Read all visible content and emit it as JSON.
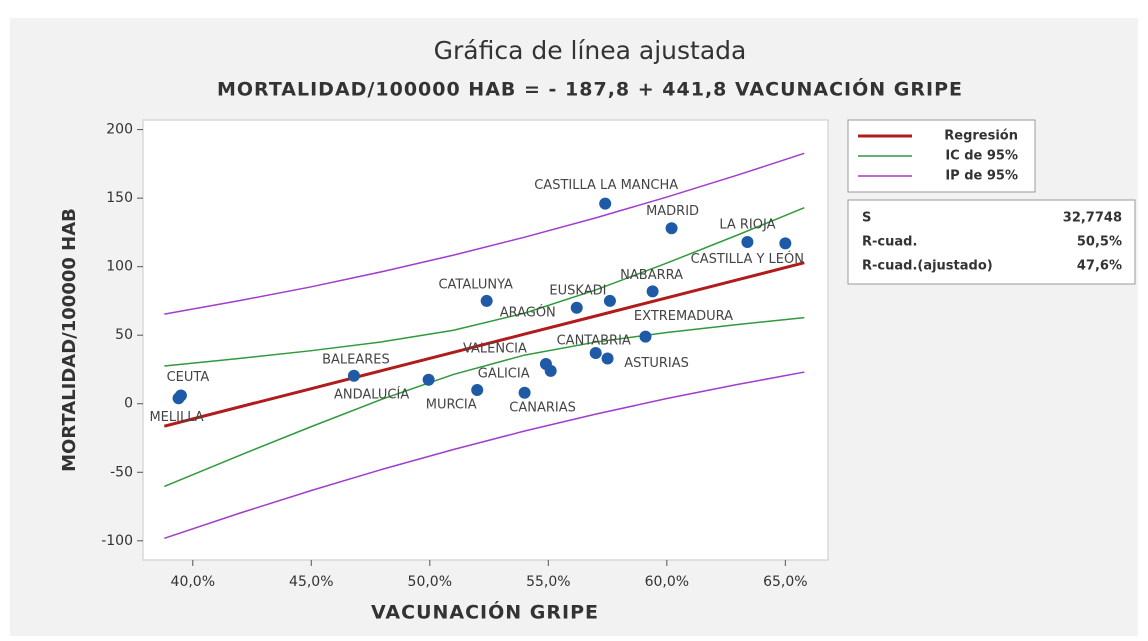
{
  "chart_data": {
    "type": "fitted_line",
    "title": "Gráfica de línea ajustada",
    "subtitle": "MORTALIDAD/100000 HAB = - 187,8 + 441,8 VACUNACIÓN GRIPE",
    "x_label": "VACUNACIÓN GRIPE",
    "y_label": "MORTALIDAD/100000 HAB",
    "xlim": [
      37.9,
      66.8
    ],
    "ylim": [
      -114,
      207
    ],
    "xticks": [
      {
        "value": 40,
        "label": "40,0%"
      },
      {
        "value": 45,
        "label": "45,0%"
      },
      {
        "value": 50,
        "label": "50,0%"
      },
      {
        "value": 55,
        "label": "55,0%"
      },
      {
        "value": 60,
        "label": "60,0%"
      },
      {
        "value": 65,
        "label": "65,0%"
      }
    ],
    "yticks": [
      200,
      150,
      100,
      50,
      0,
      -50,
      -100
    ],
    "points": {
      "color": "#1f5aa6",
      "labels": [
        "CEUTA",
        "MELILLA",
        "BALEARES",
        "ANDALUCÍA",
        "MURCIA",
        "GALICIA",
        "VALENCIA",
        "CANARIAS",
        "CATALUNYA",
        "ARAGÓN",
        "EUSKADI",
        "CANTABRIA",
        "ASTURIAS",
        "EXTREMADURA",
        "NABARRA",
        "CASTILLA LA MANCHA",
        "MADRID",
        "LA RIOJA",
        "CASTILLA Y LEÓN"
      ],
      "x": [
        39.5,
        39.4,
        46.8,
        49.95,
        52.0,
        55.1,
        54.9,
        54.0,
        52.4,
        56.2,
        57.6,
        57.0,
        57.5,
        59.1,
        59.4,
        57.4,
        60.2,
        63.4,
        65.0
      ],
      "values": [
        6,
        4,
        20.4,
        17.5,
        10,
        24,
        29,
        8,
        75,
        70,
        75,
        37,
        33,
        49,
        82,
        146,
        128,
        118,
        117
      ]
    },
    "curve_x": [
      38.8,
      42,
      45,
      48,
      51,
      54,
      57,
      60,
      63,
      65.8
    ],
    "series": [
      {
        "name": "Regresión",
        "color": "#b01c1c",
        "values": [
          -16.4,
          -2.2,
          11.0,
          24.3,
          37.5,
          50.8,
          64.0,
          77.3,
          90.5,
          102.9
        ]
      },
      {
        "name": "IC de 95%",
        "color": "#2f9a3c",
        "values": [
          27.5,
          33.1,
          38.7,
          45.2,
          53.6,
          66.1,
          83.0,
          102.6,
          123.2,
          143.0
        ],
        "lower": [
          -60.3,
          -37.5,
          -16.7,
          3.4,
          21.4,
          35.5,
          45.0,
          52.0,
          57.8,
          62.8
        ]
      },
      {
        "name": "IP de 95%",
        "color": "#a23ccc",
        "values": [
          65.4,
          75.3,
          85.3,
          96.4,
          108.4,
          121.5,
          135.6,
          150.8,
          166.9,
          182.7
        ],
        "lower": [
          -98.2,
          -79.7,
          -63.3,
          -47.8,
          -33.4,
          -19.9,
          -7.6,
          3.8,
          14.1,
          23.1
        ]
      }
    ],
    "stats": [
      {
        "name": "S",
        "value": 32.7748,
        "label": "32,7748"
      },
      {
        "name": "R-cuad.",
        "value": 50.5,
        "label": "50,5%"
      },
      {
        "name": "R-cuad.(ajustado)",
        "value": 47.6,
        "label": "47,6%"
      }
    ]
  }
}
